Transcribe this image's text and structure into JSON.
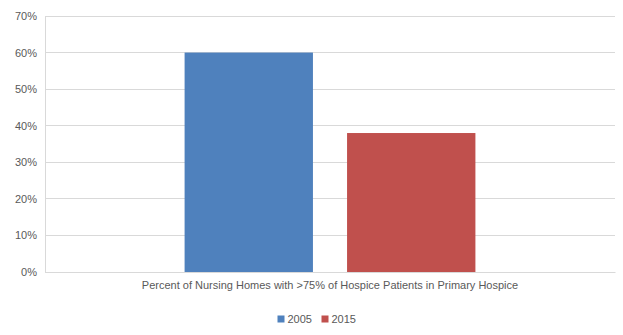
{
  "chart_data": {
    "type": "bar",
    "categories": [
      "Percent of Nursing Homes with >75% of Hospice Patients in Primary Hospice"
    ],
    "series": [
      {
        "name": "2005",
        "color": "#4f81bd",
        "values": [
          60
        ]
      },
      {
        "name": "2015",
        "color": "#c0504d",
        "values": [
          38
        ]
      }
    ],
    "ylim": [
      0,
      70
    ],
    "yticks": [
      {
        "value": 0,
        "label": "0%"
      },
      {
        "value": 10,
        "label": "10%"
      },
      {
        "value": 20,
        "label": "20%"
      },
      {
        "value": 30,
        "label": "30%"
      },
      {
        "value": 40,
        "label": "40%"
      },
      {
        "value": 50,
        "label": "50%"
      },
      {
        "value": 60,
        "label": "60%"
      },
      {
        "value": 70,
        "label": "70%"
      }
    ],
    "grid": true,
    "legend": "bottom"
  }
}
